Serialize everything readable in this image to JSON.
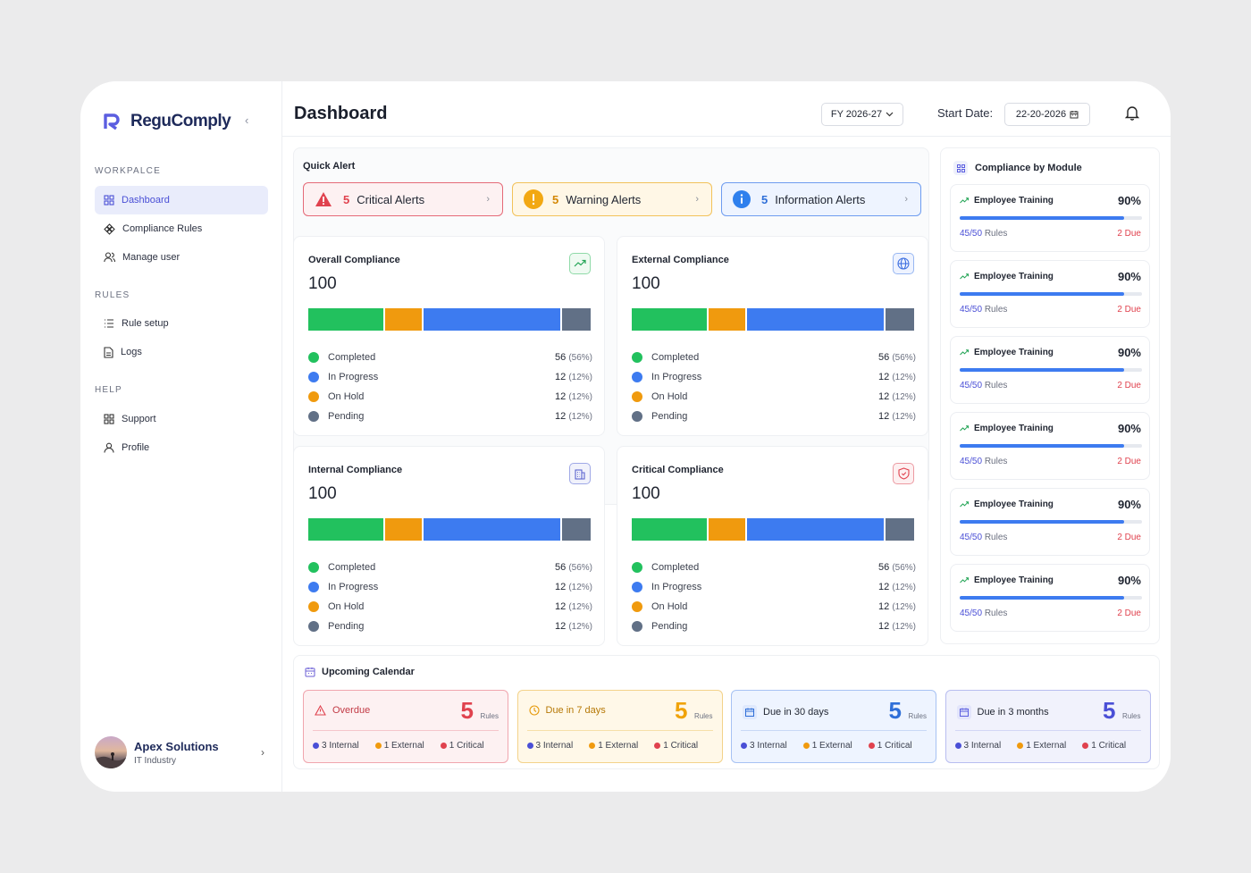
{
  "app": {
    "name": "ReguComply"
  },
  "sidebar": {
    "sections": [
      {
        "title": "WORKPALCE",
        "items": [
          {
            "label": "Dashboard"
          },
          {
            "label": "Compliance Rules"
          },
          {
            "label": "Manage user"
          }
        ]
      },
      {
        "title": "RULES",
        "items": [
          {
            "label": "Rule setup"
          },
          {
            "label": "Logs"
          }
        ]
      },
      {
        "title": "HELP",
        "items": [
          {
            "label": "Support"
          },
          {
            "label": "Profile"
          }
        ]
      }
    ],
    "user": {
      "name": "Apex Solutions",
      "subtitle": "IT Industry"
    }
  },
  "header": {
    "title": "Dashboard",
    "fiscal_year": "FY 2026-27",
    "start_date_label": "Start Date:",
    "start_date": "22-20-2026"
  },
  "quick_alert": {
    "title": "Quick Alert",
    "alerts": [
      {
        "count": "5",
        "label": "Critical Alerts"
      },
      {
        "count": "5",
        "label": "Warning Alerts"
      },
      {
        "count": "5",
        "label": "Information Alerts"
      }
    ]
  },
  "colors": {
    "completed": "#22c15e",
    "in_progress": "#3d7bf0",
    "on_hold": "#f09a0e",
    "pending": "#617086"
  },
  "compliance_cards": [
    {
      "title": "Overall Compliance",
      "value": "100",
      "icon": "trend-up-icon"
    },
    {
      "title": "External Compliance",
      "value": "100",
      "icon": "globe-icon"
    },
    {
      "title": "Internal Compliance",
      "value": "100",
      "icon": "building-icon"
    },
    {
      "title": "Critical Compliance",
      "value": "100",
      "icon": "shield-icon"
    }
  ],
  "legend": [
    {
      "label": "Completed",
      "count": "56",
      "pct": "(56%)"
    },
    {
      "label": "In Progress",
      "count": "12",
      "pct": "(12%)"
    },
    {
      "label": "On Hold",
      "count": "12",
      "pct": "(12%)"
    },
    {
      "label": "Pending",
      "count": "12",
      "pct": "(12%)"
    }
  ],
  "modules": {
    "title": "Compliance by Module",
    "items": [
      {
        "name": "Employee Training",
        "pct": "90%",
        "done": "45",
        "total": "50",
        "rules": "Rules",
        "due": "2 Due",
        "progress": 0.9
      },
      {
        "name": "Employee Training",
        "pct": "90%",
        "done": "45",
        "total": "50",
        "rules": "Rules",
        "due": "2 Due",
        "progress": 0.9
      },
      {
        "name": "Employee Training",
        "pct": "90%",
        "done": "45",
        "total": "50",
        "rules": "Rules",
        "due": "2 Due",
        "progress": 0.9
      },
      {
        "name": "Employee Training",
        "pct": "90%",
        "done": "45",
        "total": "50",
        "rules": "Rules",
        "due": "2 Due",
        "progress": 0.9
      },
      {
        "name": "Employee Training",
        "pct": "90%",
        "done": "45",
        "total": "50",
        "rules": "Rules",
        "due": "2 Due",
        "progress": 0.9
      },
      {
        "name": "Employee Training",
        "pct": "90%",
        "done": "45",
        "total": "50",
        "rules": "Rules",
        "due": "2 Due",
        "progress": 0.9
      }
    ]
  },
  "calendar": {
    "title": "Upcoming Calendar",
    "cards": [
      {
        "label": "Overdue",
        "count": "5",
        "rules": "Rules",
        "internal": "3 Internal",
        "external": "1 External",
        "critical": "1 Critical"
      },
      {
        "label": "Due in 7 days",
        "count": "5",
        "rules": "Rules",
        "internal": "3 Internal",
        "external": "1 External",
        "critical": "1 Critical"
      },
      {
        "label": "Due in 30 days",
        "count": "5",
        "rules": "Rules",
        "internal": "3 Internal",
        "external": "1 External",
        "critical": "1 Critical"
      },
      {
        "label": "Due in 3 months",
        "count": "5",
        "rules": "Rules",
        "internal": "3 Internal",
        "external": "1 External",
        "critical": "1 Critical"
      }
    ]
  }
}
